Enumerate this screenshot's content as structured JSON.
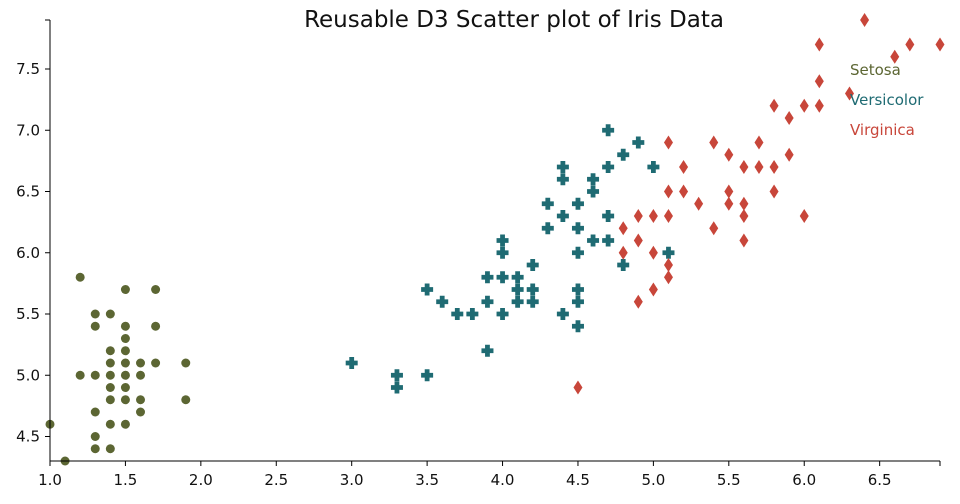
{
  "chart_data": {
    "type": "scatter",
    "title": "Reusable D3 Scatter plot of Iris Data",
    "xlabel": "",
    "ylabel": "",
    "xlim": [
      1.0,
      6.9
    ],
    "ylim": [
      4.3,
      7.9
    ],
    "x_ticks": [
      "1.0",
      "1.5",
      "2.0",
      "2.5",
      "3.0",
      "3.5",
      "4.0",
      "4.5",
      "5.0",
      "5.5",
      "6.0",
      "6.5"
    ],
    "y_ticks": [
      "4.5",
      "5.0",
      "5.5",
      "6.0",
      "6.5",
      "7.0",
      "7.5"
    ],
    "grid": false,
    "legend_position": "top-right",
    "series": [
      {
        "name": "Setosa",
        "color": "#5c6633",
        "marker": "circle",
        "points": [
          [
            1.0,
            4.6
          ],
          [
            1.1,
            4.3
          ],
          [
            1.2,
            5.8
          ],
          [
            1.2,
            5.0
          ],
          [
            1.3,
            5.5
          ],
          [
            1.3,
            5.4
          ],
          [
            1.3,
            5.0
          ],
          [
            1.3,
            4.7
          ],
          [
            1.3,
            4.5
          ],
          [
            1.3,
            4.4
          ],
          [
            1.4,
            5.5
          ],
          [
            1.4,
            5.2
          ],
          [
            1.4,
            5.1
          ],
          [
            1.4,
            5.0
          ],
          [
            1.4,
            4.9
          ],
          [
            1.4,
            4.8
          ],
          [
            1.4,
            4.6
          ],
          [
            1.4,
            4.4
          ],
          [
            1.5,
            5.7
          ],
          [
            1.5,
            5.4
          ],
          [
            1.5,
            5.3
          ],
          [
            1.5,
            5.2
          ],
          [
            1.5,
            5.1
          ],
          [
            1.5,
            5.0
          ],
          [
            1.5,
            4.9
          ],
          [
            1.5,
            4.8
          ],
          [
            1.5,
            4.6
          ],
          [
            1.6,
            5.1
          ],
          [
            1.6,
            5.0
          ],
          [
            1.6,
            4.8
          ],
          [
            1.6,
            4.7
          ],
          [
            1.7,
            5.7
          ],
          [
            1.7,
            5.4
          ],
          [
            1.7,
            5.1
          ],
          [
            1.9,
            5.1
          ],
          [
            1.9,
            4.8
          ]
        ]
      },
      {
        "name": "Versicolor",
        "color": "#1f6b73",
        "marker": "cross",
        "points": [
          [
            3.0,
            5.1
          ],
          [
            3.3,
            5.0
          ],
          [
            3.3,
            4.9
          ],
          [
            3.5,
            5.7
          ],
          [
            3.5,
            5.0
          ],
          [
            3.6,
            5.6
          ],
          [
            3.7,
            5.5
          ],
          [
            3.8,
            5.5
          ],
          [
            3.9,
            5.8
          ],
          [
            3.9,
            5.6
          ],
          [
            3.9,
            5.2
          ],
          [
            4.0,
            6.1
          ],
          [
            4.0,
            6.0
          ],
          [
            4.0,
            5.8
          ],
          [
            4.0,
            5.5
          ],
          [
            4.1,
            5.8
          ],
          [
            4.1,
            5.7
          ],
          [
            4.1,
            5.6
          ],
          [
            4.2,
            5.9
          ],
          [
            4.2,
            5.7
          ],
          [
            4.2,
            5.6
          ],
          [
            4.3,
            6.4
          ],
          [
            4.3,
            6.2
          ],
          [
            4.4,
            6.7
          ],
          [
            4.4,
            6.6
          ],
          [
            4.4,
            6.3
          ],
          [
            4.4,
            5.5
          ],
          [
            4.5,
            6.4
          ],
          [
            4.5,
            6.2
          ],
          [
            4.5,
            6.0
          ],
          [
            4.5,
            5.7
          ],
          [
            4.5,
            5.6
          ],
          [
            4.5,
            5.4
          ],
          [
            4.6,
            6.6
          ],
          [
            4.6,
            6.5
          ],
          [
            4.6,
            6.1
          ],
          [
            4.7,
            7.0
          ],
          [
            4.7,
            6.7
          ],
          [
            4.7,
            6.3
          ],
          [
            4.7,
            6.1
          ],
          [
            4.8,
            6.8
          ],
          [
            4.8,
            5.9
          ],
          [
            4.9,
            6.9
          ],
          [
            5.0,
            6.7
          ],
          [
            5.1,
            6.0
          ]
        ]
      },
      {
        "name": "Virginica",
        "color": "#c8463a",
        "marker": "diamond",
        "points": [
          [
            4.5,
            4.9
          ],
          [
            4.8,
            6.2
          ],
          [
            4.8,
            6.0
          ],
          [
            4.9,
            6.3
          ],
          [
            4.9,
            6.1
          ],
          [
            4.9,
            5.6
          ],
          [
            5.0,
            6.3
          ],
          [
            5.0,
            6.0
          ],
          [
            5.0,
            5.7
          ],
          [
            5.1,
            6.9
          ],
          [
            5.1,
            6.5
          ],
          [
            5.1,
            6.3
          ],
          [
            5.1,
            5.9
          ],
          [
            5.1,
            5.8
          ],
          [
            5.2,
            6.7
          ],
          [
            5.2,
            6.5
          ],
          [
            5.3,
            6.4
          ],
          [
            5.4,
            6.9
          ],
          [
            5.4,
            6.2
          ],
          [
            5.5,
            6.8
          ],
          [
            5.5,
            6.5
          ],
          [
            5.5,
            6.4
          ],
          [
            5.6,
            6.7
          ],
          [
            5.6,
            6.4
          ],
          [
            5.6,
            6.3
          ],
          [
            5.6,
            6.1
          ],
          [
            5.7,
            6.9
          ],
          [
            5.7,
            6.7
          ],
          [
            5.8,
            7.2
          ],
          [
            5.8,
            6.7
          ],
          [
            5.8,
            6.5
          ],
          [
            5.9,
            7.1
          ],
          [
            5.9,
            6.8
          ],
          [
            6.0,
            7.2
          ],
          [
            6.0,
            6.3
          ],
          [
            6.1,
            7.7
          ],
          [
            6.1,
            7.4
          ],
          [
            6.1,
            7.2
          ],
          [
            6.3,
            7.3
          ],
          [
            6.4,
            7.9
          ],
          [
            6.6,
            7.6
          ],
          [
            6.7,
            7.7
          ],
          [
            6.9,
            7.7
          ]
        ]
      }
    ]
  }
}
